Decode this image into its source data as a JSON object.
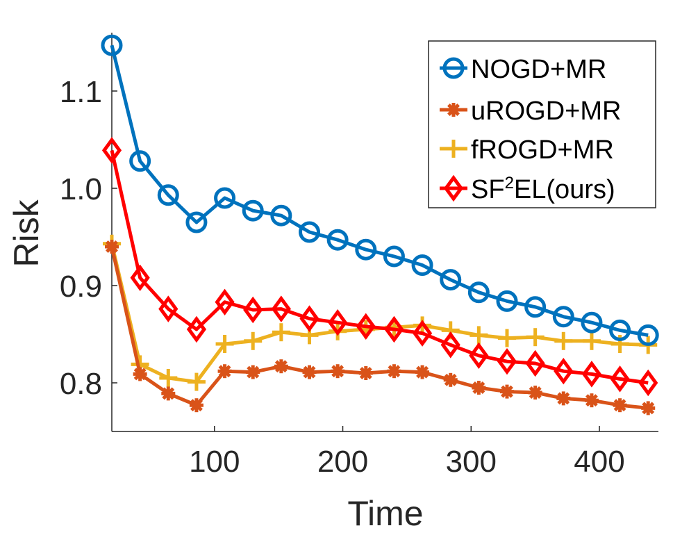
{
  "chart_data": {
    "type": "line",
    "xlabel": "Time",
    "ylabel": "Risk",
    "xlim": [
      20,
      446
    ],
    "ylim": [
      0.75,
      1.16
    ],
    "xticks": [
      100,
      200,
      300,
      400
    ],
    "xtick_labels": [
      "100",
      "200",
      "300",
      "400"
    ],
    "yticks": [
      0.8,
      0.9,
      1.0,
      1.1
    ],
    "ytick_labels": [
      "0.8",
      "0.9",
      "1.0",
      "1.1"
    ],
    "grid": false,
    "legend_position": "top-right",
    "x": [
      20,
      42,
      64,
      86,
      108,
      130,
      152,
      174,
      196,
      218,
      240,
      262,
      284,
      306,
      328,
      350,
      372,
      394,
      416,
      438
    ],
    "series": [
      {
        "name": "NOGD+MR",
        "color": "#0072BD",
        "marker": "circle",
        "values": [
          1.147,
          1.028,
          0.993,
          0.965,
          0.99,
          0.977,
          0.972,
          0.955,
          0.947,
          0.937,
          0.93,
          0.921,
          0.906,
          0.893,
          0.884,
          0.878,
          0.868,
          0.862,
          0.854,
          0.849
        ]
      },
      {
        "name": "uROGD+MR",
        "color": "#D95319",
        "marker": "star",
        "values": [
          0.94,
          0.809,
          0.789,
          0.777,
          0.812,
          0.811,
          0.817,
          0.811,
          0.812,
          0.81,
          0.812,
          0.811,
          0.803,
          0.795,
          0.791,
          0.79,
          0.784,
          0.782,
          0.777,
          0.774
        ]
      },
      {
        "name": "fROGD+MR",
        "color": "#EDB120",
        "marker": "plus",
        "values": [
          0.943,
          0.819,
          0.805,
          0.801,
          0.84,
          0.843,
          0.852,
          0.849,
          0.853,
          0.855,
          0.857,
          0.859,
          0.854,
          0.849,
          0.846,
          0.847,
          0.843,
          0.843,
          0.84,
          0.839
        ]
      },
      {
        "name_parts": [
          "SF",
          "2",
          "EL(ours)"
        ],
        "color": "#FF0000",
        "marker": "diamond",
        "values": [
          1.039,
          0.908,
          0.876,
          0.855,
          0.883,
          0.875,
          0.876,
          0.866,
          0.862,
          0.858,
          0.855,
          0.851,
          0.839,
          0.828,
          0.822,
          0.82,
          0.812,
          0.809,
          0.804,
          0.8
        ]
      }
    ]
  }
}
